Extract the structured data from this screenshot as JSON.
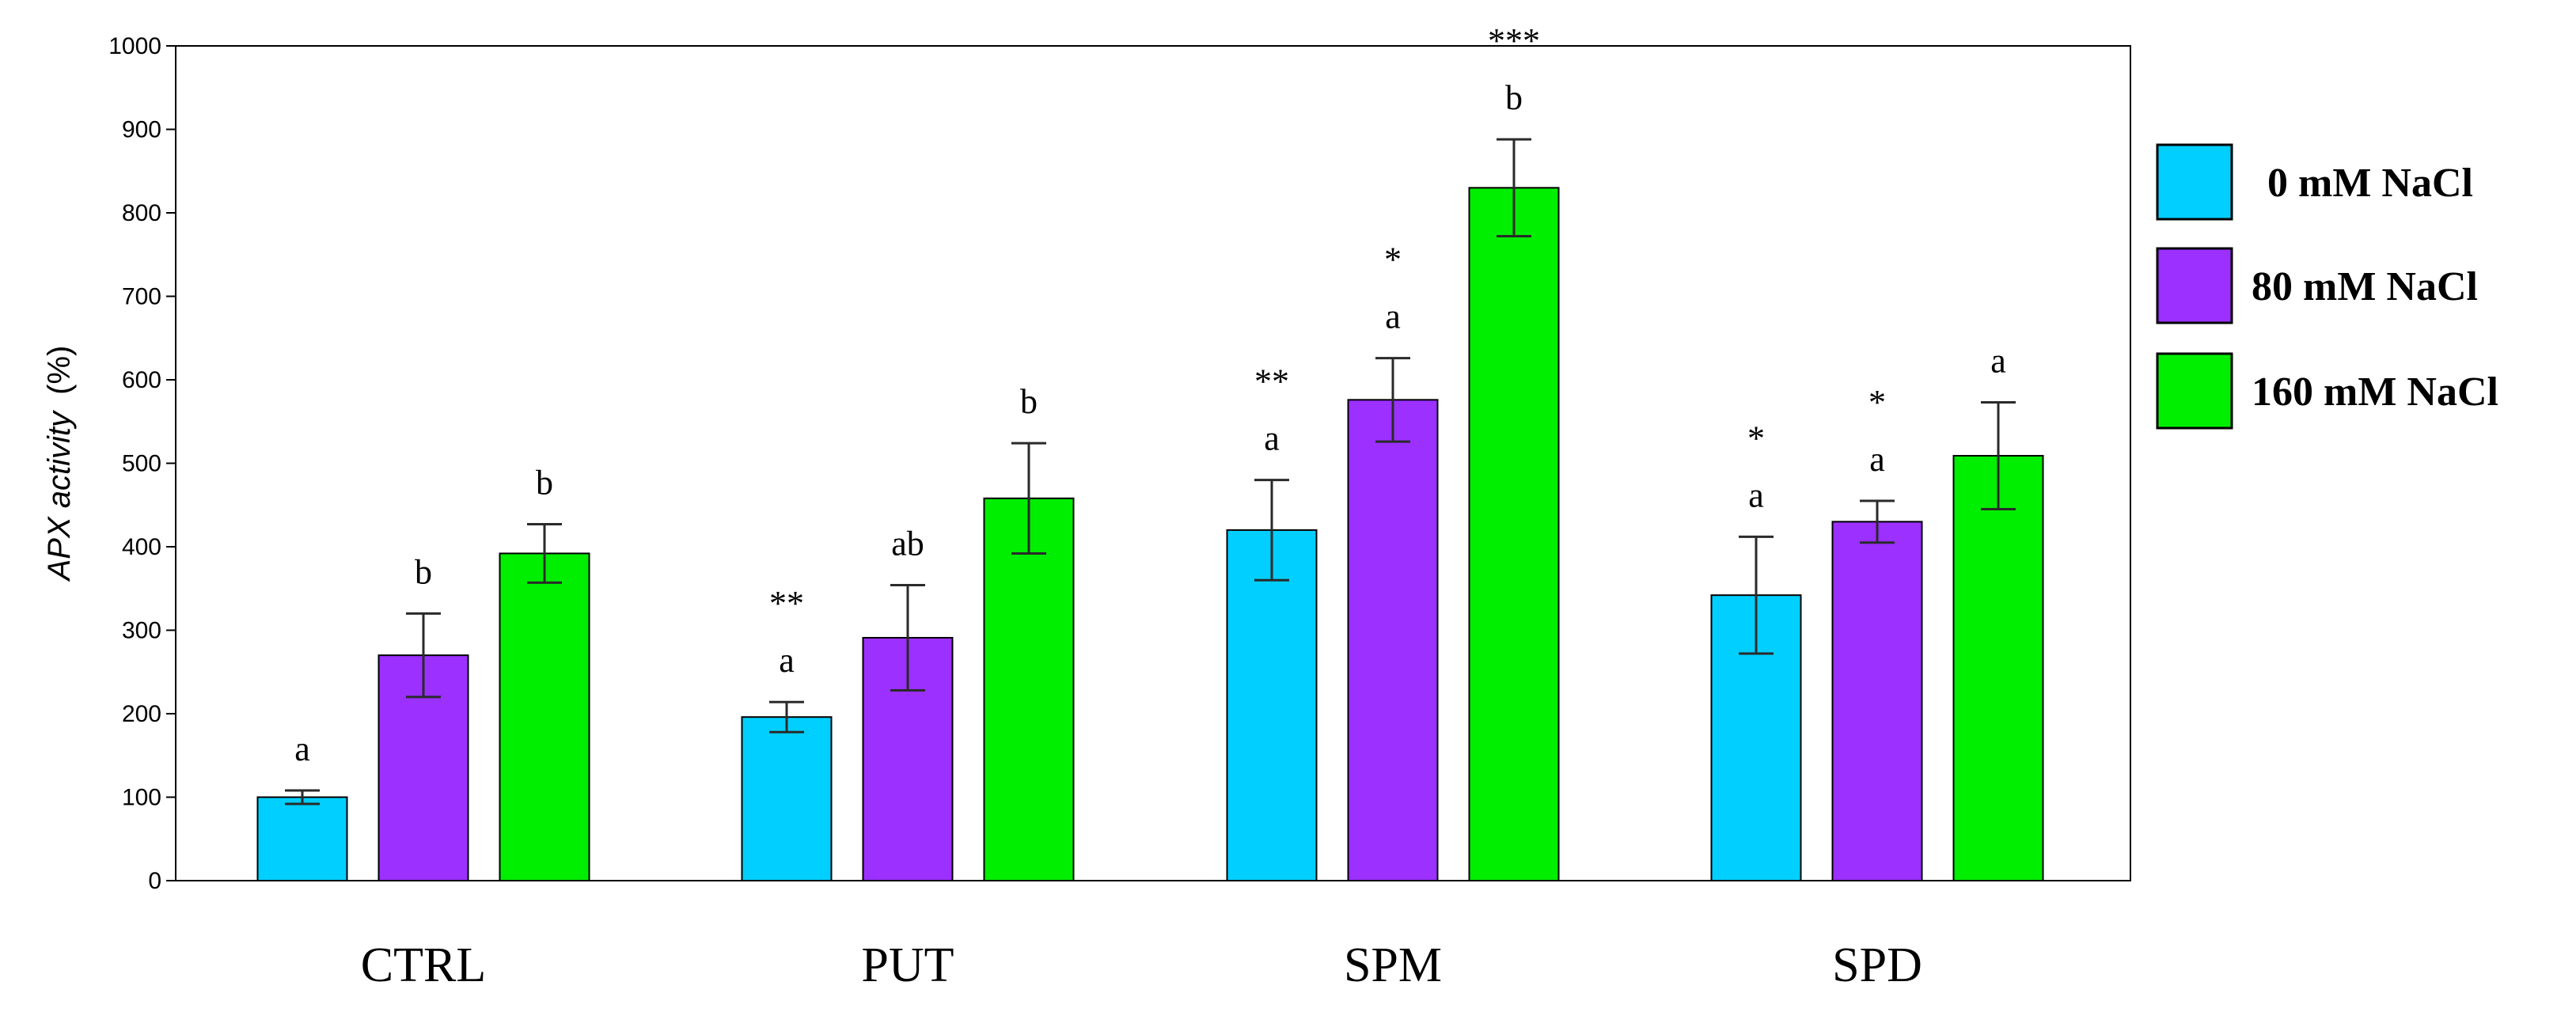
{
  "chart_data": {
    "type": "bar",
    "title": "",
    "xlabel": "",
    "ylabel_prefix": "APX activity",
    "ylabel_suffix": "(%)",
    "ylim": [
      0,
      1000
    ],
    "yticks": [
      0,
      100,
      200,
      300,
      400,
      500,
      600,
      700,
      800,
      900,
      1000
    ],
    "categories": [
      "CTRL",
      "PUT",
      "SPM",
      "SPD"
    ],
    "legend_position": "right",
    "series": [
      {
        "name": "0 mM NaCl",
        "color": "#00cfff",
        "values": [
          100,
          196,
          420,
          342
        ],
        "errors": [
          8,
          18,
          60,
          70
        ],
        "letters": [
          "a",
          "a",
          "a",
          "a"
        ],
        "stars": [
          "",
          "**",
          "**",
          "*"
        ]
      },
      {
        "name": "80 mM NaCl",
        "color": "#9b30ff",
        "values": [
          270,
          291,
          576,
          430
        ],
        "errors": [
          50,
          63,
          50,
          25
        ],
        "letters": [
          "b",
          "ab",
          "a",
          "a"
        ],
        "stars": [
          "",
          "",
          "*",
          "*"
        ]
      },
      {
        "name": "160 mM NaCl",
        "color": "#00ee00",
        "values": [
          392,
          458,
          830,
          509
        ],
        "errors": [
          35,
          66,
          58,
          64
        ],
        "letters": [
          "b",
          "b",
          "b",
          "a"
        ],
        "stars": [
          "",
          "",
          "***",
          ""
        ]
      }
    ]
  }
}
